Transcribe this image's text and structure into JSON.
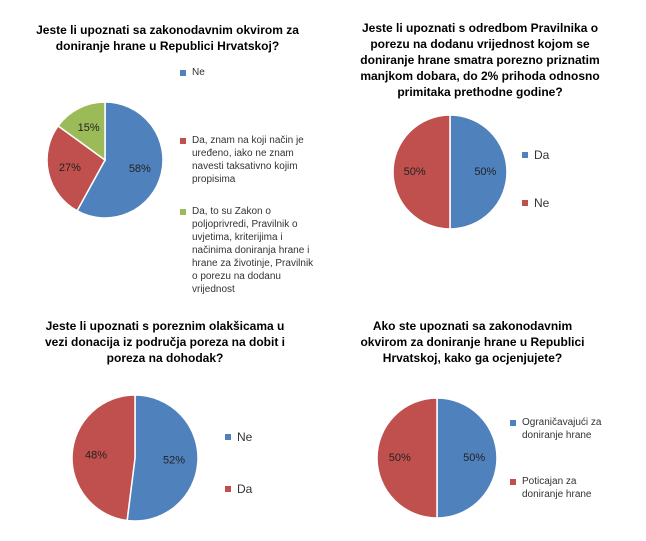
{
  "chart_data": [
    {
      "type": "pie",
      "title": "Jeste li upoznati sa zakonodavnim okvirom za doniranje hrane u Republici Hrvatskoj?",
      "categories": [
        "Ne",
        "Da, znam na koji način je uređeno, iako ne znam navesti taksativno kojim propisima",
        "Da, to su Zakon o poljoprivredi, Pravilnik o uvjetima, kriterijima i načinima doniranja hrane i hrane za životinje, Pravilnik o porezu na dodanu vrijednost"
      ],
      "values": [
        58,
        27,
        15
      ],
      "value_labels": [
        "58%",
        "27%",
        "15%"
      ],
      "colors": [
        "#4f81bd",
        "#c0504d",
        "#9bbb59"
      ]
    },
    {
      "type": "pie",
      "title": "Jeste li upoznati s odredbom Pravilnika o porezu na dodanu vrijednost kojom se doniranje hrane smatra porezno priznatim manjkom dobara, do 2% prihoda odnosno primitaka prethodne godine?",
      "categories": [
        "Da",
        "Ne"
      ],
      "values": [
        50,
        50
      ],
      "value_labels": [
        "50%",
        "50%"
      ],
      "colors": [
        "#4f81bd",
        "#c0504d"
      ]
    },
    {
      "type": "pie",
      "title": "Jeste li upoznati s poreznim olakšicama u vezi donacija iz područja poreza na dobit i poreza na dohodak?",
      "categories": [
        "Ne",
        "Da"
      ],
      "values": [
        52,
        48
      ],
      "value_labels": [
        "52%",
        "48%"
      ],
      "colors": [
        "#4f81bd",
        "#c0504d"
      ]
    },
    {
      "type": "pie",
      "title": "Ako ste upoznati sa zakonodavnim okvirom za doniranje hrane u Republici Hrvatskoj, kako ga ocjenjujete?",
      "categories": [
        "Ograničavajući za doniranje hrane",
        "Poticajan za doniranje hrane"
      ],
      "values": [
        50,
        50
      ],
      "value_labels": [
        "50%",
        "50%"
      ],
      "colors": [
        "#4f81bd",
        "#c0504d"
      ]
    }
  ]
}
